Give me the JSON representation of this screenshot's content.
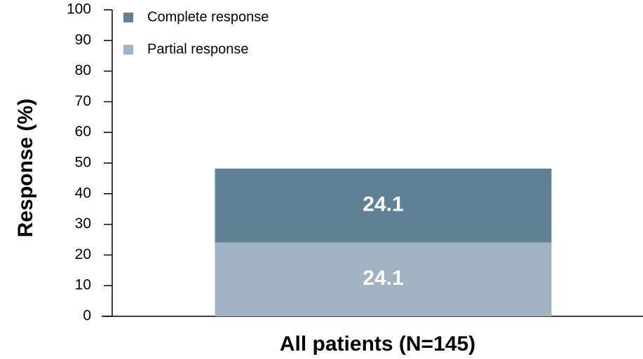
{
  "chart_data": {
    "type": "stacked_bar",
    "y_label": "Response (%)",
    "categories": [
      "All patients (N=145)"
    ],
    "series": [
      {
        "name": "Partial response",
        "color": "#9fb3c3",
        "values": [
          24.1
        ]
      },
      {
        "name": "Complete response",
        "color": "#5e8196",
        "values": [
          24.1
        ]
      }
    ],
    "ylim": [
      0,
      100
    ],
    "yticks": [
      0,
      10,
      20,
      30,
      40,
      50,
      60,
      70,
      80,
      90,
      100
    ]
  }
}
